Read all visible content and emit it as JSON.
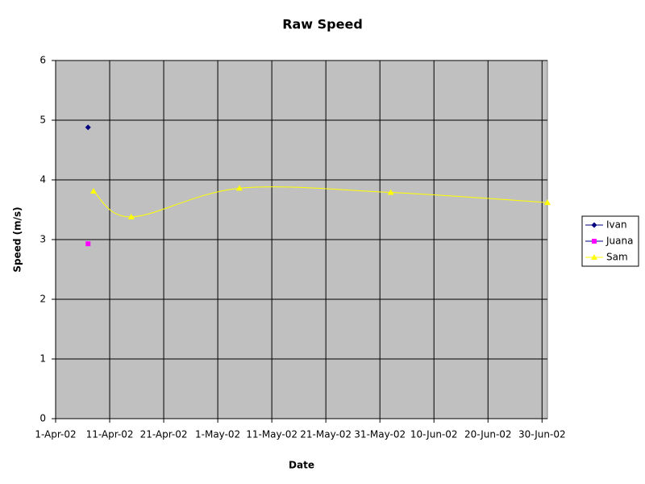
{
  "chart_data": {
    "type": "line",
    "title": "Raw Speed",
    "x_label": "Date",
    "y_label": "Speed (m/s)",
    "x": [
      "2002-04-07",
      "2002-04-08",
      "2002-04-15",
      "2002-05-05",
      "2002-06-02",
      "2002-07-01"
    ],
    "series": [
      {
        "name": "Ivan",
        "color": "#000080",
        "marker": "diamond",
        "line": false,
        "values": [
          4.88,
          null,
          null,
          null,
          null,
          null
        ]
      },
      {
        "name": "Juana",
        "color": "#ff00ff",
        "marker": "square",
        "line": false,
        "values": [
          2.93,
          null,
          null,
          null,
          null,
          null
        ]
      },
      {
        "name": "Sam",
        "color": "#ffff00",
        "marker": "triangle",
        "line": true,
        "values": [
          null,
          3.81,
          3.38,
          3.86,
          3.79,
          3.62
        ]
      }
    ],
    "xlim": [
      "2002-04-01",
      "2002-07-01"
    ],
    "xticks": [
      {
        "value": "2002-04-01",
        "label": "1-Apr-02"
      },
      {
        "value": "2002-04-11",
        "label": "11-Apr-02"
      },
      {
        "value": "2002-04-21",
        "label": "21-Apr-02"
      },
      {
        "value": "2002-05-01",
        "label": "1-May-02"
      },
      {
        "value": "2002-05-11",
        "label": "11-May-02"
      },
      {
        "value": "2002-05-21",
        "label": "21-May-02"
      },
      {
        "value": "2002-05-31",
        "label": "31-May-02"
      },
      {
        "value": "2002-06-10",
        "label": "10-Jun-02"
      },
      {
        "value": "2002-06-20",
        "label": "20-Jun-02"
      },
      {
        "value": "2002-06-30",
        "label": "30-Jun-02"
      }
    ],
    "ylim": [
      0,
      6
    ],
    "yticks": [
      0,
      1,
      2,
      3,
      4,
      5,
      6
    ],
    "grid": true,
    "legend": "right",
    "plot_background": "#c0c0c0"
  }
}
